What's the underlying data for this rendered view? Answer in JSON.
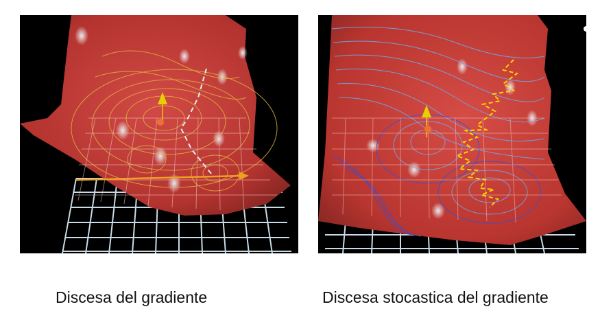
{
  "captions": {
    "left": "Discesa del gradiente",
    "right": "Discesa stocastica del gradiente"
  },
  "colors": {
    "background": "#ffffff",
    "panel_background": "#000000",
    "surface": "#c9403c",
    "surface_dark": "#8e2a28",
    "grid": "#c8dbe6",
    "contour_left": "#e0b040",
    "contour_right": "#6fa8e8",
    "contour_right_deep": "#3a4fd0",
    "path_left": "#e8eef6",
    "path_right": "#ffd400",
    "arrow": "#f0a020",
    "marker_cone": "#e6d000",
    "marker_ball": "#f07030"
  },
  "icons": [
    "cone-marker-icon",
    "ball-marker-icon",
    "arrow-icon"
  ]
}
